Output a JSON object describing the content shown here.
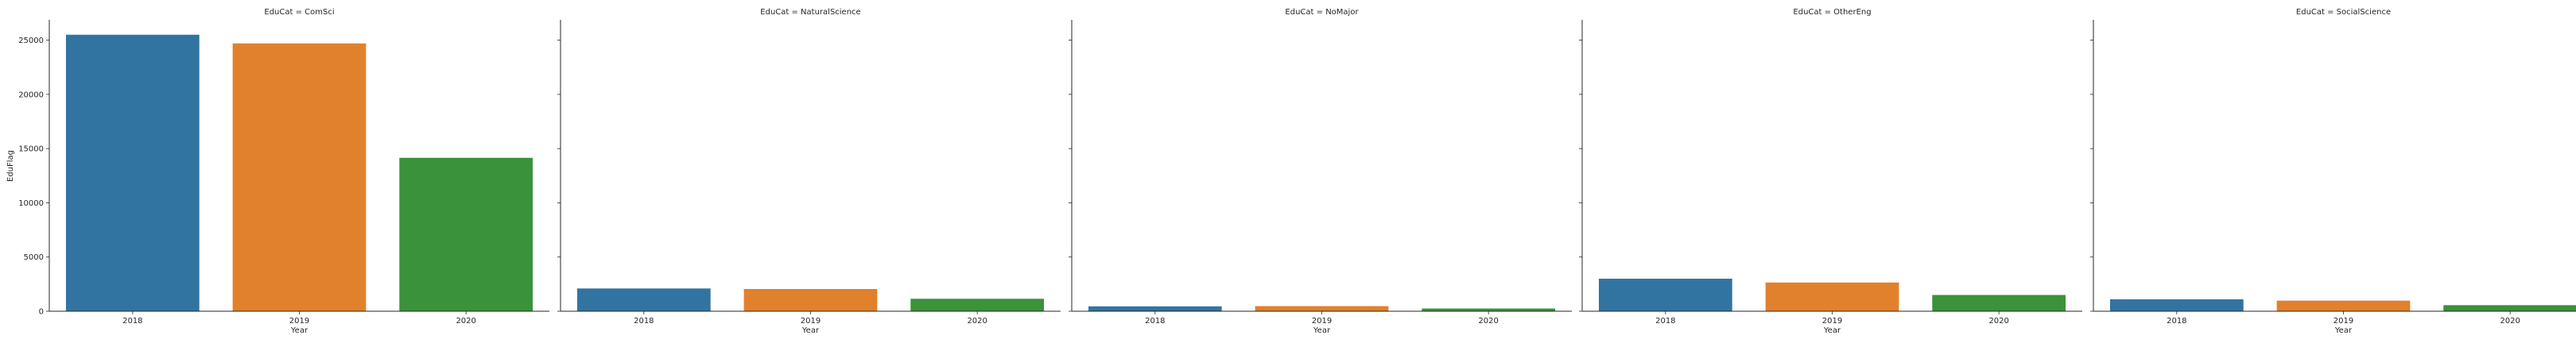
{
  "chart_data": {
    "type": "bar",
    "ylabel": "EduFlag",
    "xlabel": "Year",
    "ylim": [
      0,
      26800
    ],
    "yticks": [
      0,
      5000,
      10000,
      15000,
      20000,
      25000
    ],
    "grid": false,
    "colors": {
      "2018": "#3274a1",
      "2019": "#e1812c",
      "2020": "#3a923a"
    },
    "categories": [
      "2018",
      "2019",
      "2020"
    ],
    "panels": [
      {
        "title": "EduCat = ComSci",
        "values": [
          25500,
          24700,
          14150
        ]
      },
      {
        "title": "EduCat = NaturalScience",
        "values": [
          2100,
          2050,
          1150
        ]
      },
      {
        "title": "EduCat = NoMajor",
        "values": [
          450,
          470,
          250
        ]
      },
      {
        "title": "EduCat = OtherEng",
        "values": [
          3000,
          2650,
          1500
        ]
      },
      {
        "title": "EduCat = SocialScience",
        "values": [
          1100,
          980,
          560
        ]
      }
    ]
  }
}
